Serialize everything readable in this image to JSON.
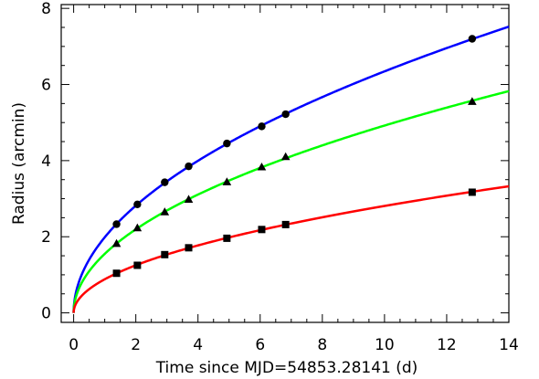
{
  "chart_data": {
    "type": "line",
    "title": "",
    "xlabel": "Time since MJD=54853.28141 (d)",
    "ylabel": "Radius (arcmin)",
    "xlim": [
      -0.4,
      14
    ],
    "ylim": [
      -0.25,
      8.1
    ],
    "xticks": [
      0,
      2,
      4,
      6,
      8,
      10,
      12,
      14
    ],
    "yticks": [
      0,
      2,
      4,
      6,
      8
    ],
    "xtick_labels": [
      "0",
      "2",
      "4",
      "6",
      "8",
      "10",
      "12",
      "14"
    ],
    "ytick_labels": [
      "0",
      "2",
      "4",
      "6",
      "8"
    ],
    "grid": false,
    "legend": "none",
    "series": [
      {
        "color": "#0000ff",
        "marker": "circle",
        "x": [
          1.38,
          2.05,
          2.93,
          3.7,
          4.93,
          6.05,
          6.82,
          12.82
        ],
        "y": [
          2.33,
          2.85,
          3.43,
          3.85,
          4.45,
          4.9,
          5.22,
          7.2
        ]
      },
      {
        "color": "#00ff00",
        "marker": "triangle",
        "x": [
          1.38,
          2.05,
          2.93,
          3.7,
          4.93,
          6.05,
          6.82,
          12.82
        ],
        "y": [
          1.82,
          2.23,
          2.65,
          2.98,
          3.44,
          3.83,
          4.1,
          5.55
        ]
      },
      {
        "color": "#ff0000",
        "marker": "square",
        "x": [
          1.38,
          2.05,
          2.93,
          3.7,
          4.93,
          6.05,
          6.82,
          12.82
        ],
        "y": [
          1.04,
          1.25,
          1.53,
          1.71,
          1.96,
          2.19,
          2.32,
          3.17
        ]
      }
    ]
  }
}
